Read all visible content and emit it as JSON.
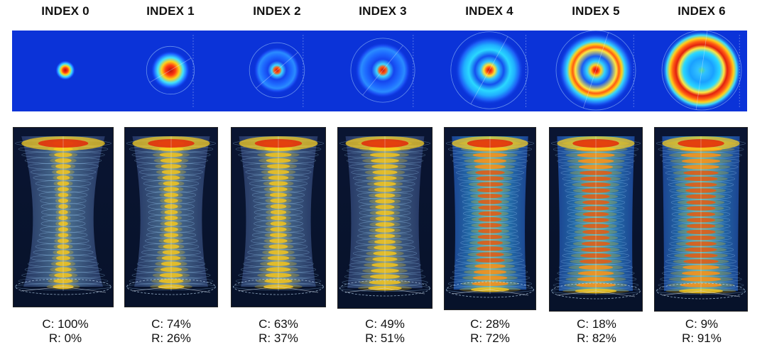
{
  "columns": [
    {
      "header": "INDEX 0",
      "c_label": "C: 100%",
      "r_label": "R: 0%",
      "c_fraction": 1.0,
      "r_fraction": 0.0
    },
    {
      "header": "INDEX 1",
      "c_label": "C: 74%",
      "r_label": "R: 26%",
      "c_fraction": 0.74,
      "r_fraction": 0.26
    },
    {
      "header": "INDEX 2",
      "c_label": "C: 63%",
      "r_label": "R: 37%",
      "c_fraction": 0.63,
      "r_fraction": 0.37
    },
    {
      "header": "INDEX 3",
      "c_label": "C: 49%",
      "r_label": "R: 51%",
      "c_fraction": 0.49,
      "r_fraction": 0.51
    },
    {
      "header": "INDEX 4",
      "c_label": "C: 28%",
      "r_label": "R: 72%",
      "c_fraction": 0.28,
      "r_fraction": 0.72
    },
    {
      "header": "INDEX 5",
      "c_label": "C: 18%",
      "r_label": "R: 82%",
      "c_fraction": 0.18,
      "r_fraction": 0.82
    },
    {
      "header": "INDEX 6",
      "c_label": "C: 9%",
      "r_label": "R: 91%",
      "c_fraction": 0.09,
      "r_fraction": 0.91
    }
  ],
  "colors": {
    "background_blue": "#0b33d8",
    "hot_core": "#c81010",
    "ring_yellow": "#ffd21a",
    "ring_cyan": "#25c9ff",
    "panel_bg": "#0b1630"
  }
}
